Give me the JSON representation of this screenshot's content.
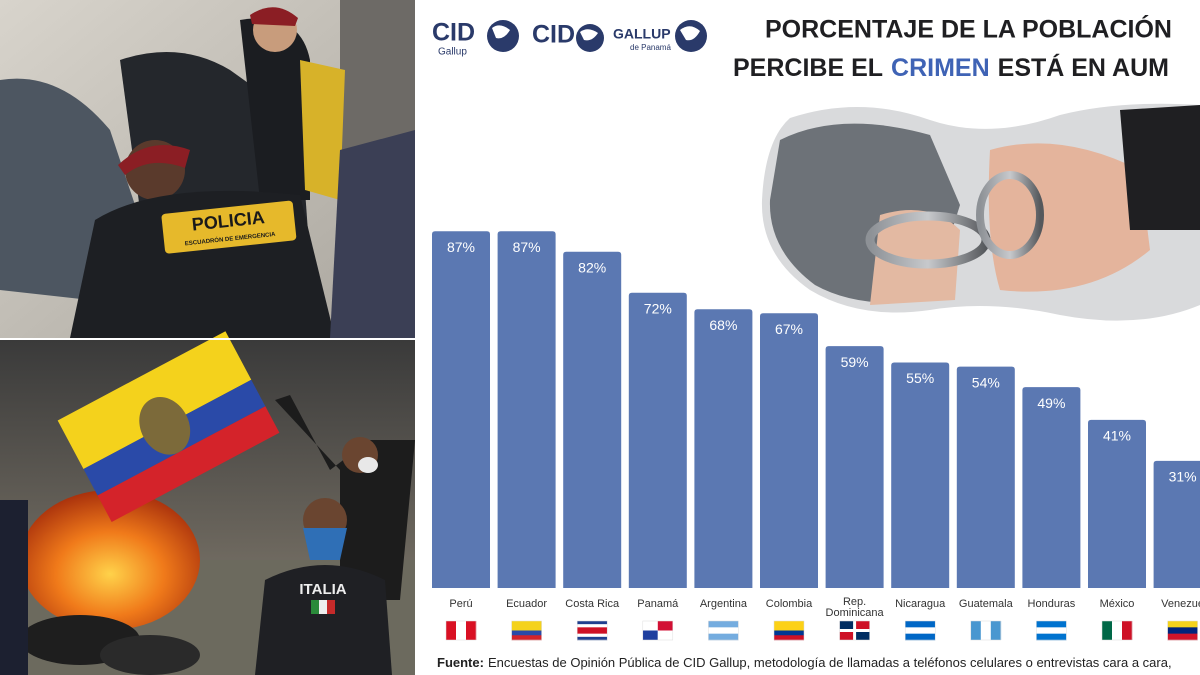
{
  "chart_data": {
    "type": "bar",
    "title_line1": "PORCENTAJE DE LA POBLACIÓN",
    "title_line2_start": "PERCIBE EL",
    "title_highlight": "CRIMEN",
    "title_line2_end": "ESTÁ EN AUM",
    "logos": {
      "cid1": "CID",
      "cid1_sub": "Gallup",
      "cid2": "CID",
      "gallup": "GALLUP",
      "gallup_sub": "de Panamá"
    },
    "categories": [
      "Perú",
      "Ecuador",
      "Costa Rica",
      "Panamá",
      "Argentina",
      "Colombia",
      "Rep. Dominicana",
      "Nicaragua",
      "Guatemala",
      "Honduras",
      "México",
      "Venezue"
    ],
    "values": [
      87,
      87,
      82,
      72,
      68,
      67,
      59,
      55,
      54,
      49,
      41,
      31
    ],
    "value_labels": [
      "87%",
      "87%",
      "82%",
      "72%",
      "68%",
      "67%",
      "59%",
      "55%",
      "54%",
      "49%",
      "41%",
      "31%"
    ],
    "color": "#5b78b2",
    "footer_label": "Fuente:",
    "footer_text": "Encuestas de Opinión Pública de CID Gallup, metodología de llamadas a teléfonos celulares o entrevistas cara a cara,"
  },
  "photos": {
    "police_patch": "POLICIA",
    "police_patch_sub": "ESCUADRÓN DE EMERGENCIA",
    "shirt": "ITALIA"
  }
}
